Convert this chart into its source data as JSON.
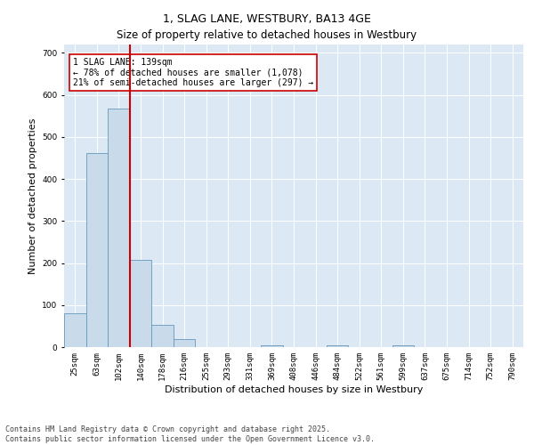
{
  "title": "1, SLAG LANE, WESTBURY, BA13 4GE",
  "subtitle": "Size of property relative to detached houses in Westbury",
  "xlabel": "Distribution of detached houses by size in Westbury",
  "ylabel": "Number of detached properties",
  "bar_color": "#c9daea",
  "bar_edge_color": "#6699bb",
  "background_color": "#dce9f5",
  "categories": [
    "25sqm",
    "63sqm",
    "102sqm",
    "140sqm",
    "178sqm",
    "216sqm",
    "255sqm",
    "293sqm",
    "331sqm",
    "369sqm",
    "408sqm",
    "446sqm",
    "484sqm",
    "522sqm",
    "561sqm",
    "599sqm",
    "637sqm",
    "675sqm",
    "714sqm",
    "752sqm",
    "790sqm"
  ],
  "values": [
    80,
    462,
    568,
    207,
    52,
    20,
    0,
    0,
    0,
    5,
    0,
    0,
    5,
    0,
    0,
    5,
    0,
    0,
    0,
    0,
    0
  ],
  "property_label": "1 SLAG LANE: 139sqm",
  "annotation_line1": "← 78% of detached houses are smaller (1,078)",
  "annotation_line2": "21% of semi-detached houses are larger (297) →",
  "vline_color": "#cc0000",
  "vline_x": 3.0,
  "ylim": [
    0,
    720
  ],
  "yticks": [
    0,
    100,
    200,
    300,
    400,
    500,
    600,
    700
  ],
  "footnote1": "Contains HM Land Registry data © Crown copyright and database right 2025.",
  "footnote2": "Contains public sector information licensed under the Open Government Licence v3.0.",
  "annotation_box_color": "#ffffff",
  "annotation_box_edge": "#cc0000",
  "grid_color": "#ffffff",
  "title_fontsize": 9,
  "subtitle_fontsize": 8.5,
  "tick_fontsize": 6.5,
  "axis_label_fontsize": 8,
  "footnote_fontsize": 6
}
